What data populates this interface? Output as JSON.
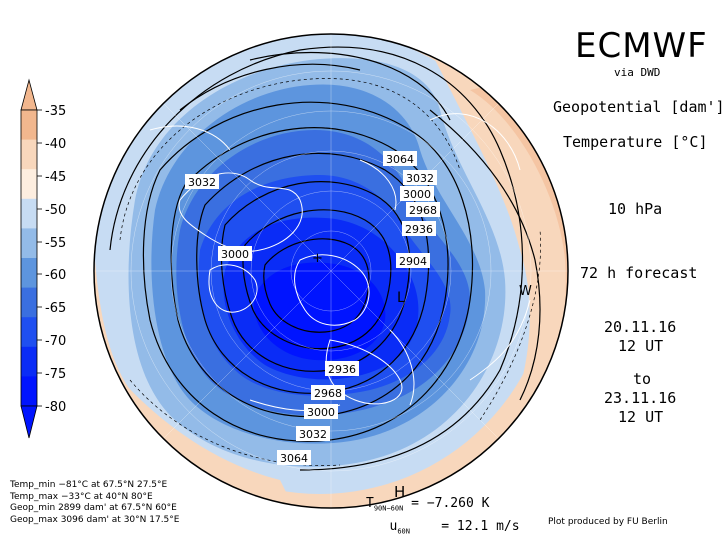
{
  "header": {
    "title": "ECMWF",
    "via": "via DWD",
    "field1": "Geopotential [dam']",
    "field2": "Temperature [°C]",
    "level": "10 hPa",
    "forecast": "72 h forecast",
    "init_date": "20.11.16",
    "init_time": "12 UT",
    "to": "to",
    "valid_date": "23.11.16",
    "valid_time": "12 UT"
  },
  "colorbar": {
    "labels": [
      "-35",
      "-40",
      "-45",
      "-50",
      "-55",
      "-60",
      "-65",
      "-70",
      "-75",
      "-80"
    ],
    "colors": [
      "#f2b78e",
      "#f8d7bc",
      "#fdeee0",
      "#c7dcf3",
      "#93bbe8",
      "#5d95de",
      "#3a6fe0",
      "#1f4ff0",
      "#0a2cf6",
      "#0014ff"
    ]
  },
  "contour_labels": [
    "3064",
    "3032",
    "3000",
    "2968",
    "2936",
    "2904",
    "3032",
    "3000",
    "2936",
    "2968",
    "3000",
    "3032",
    "3064"
  ],
  "markers": {
    "low": "L",
    "warm": "W",
    "high": "H"
  },
  "stats": [
    "Temp_min −81°C at 67.5°N 27.5°E",
    "Temp_max −33°C at 40°N 80°E",
    "Geop_min 2899 dam' at 67.5°N 60°E",
    "Geop_max 3096 dam' at 30°N 17.5°E"
  ],
  "diagnostics": {
    "t_label": "T",
    "t_sub": "90N−60N",
    "t_value": "= −7.260 K",
    "u_label": "u",
    "u_sub": "60N",
    "u_value": "= 12.1 m/s"
  },
  "credit": "Plot produced by FU Berlin"
}
